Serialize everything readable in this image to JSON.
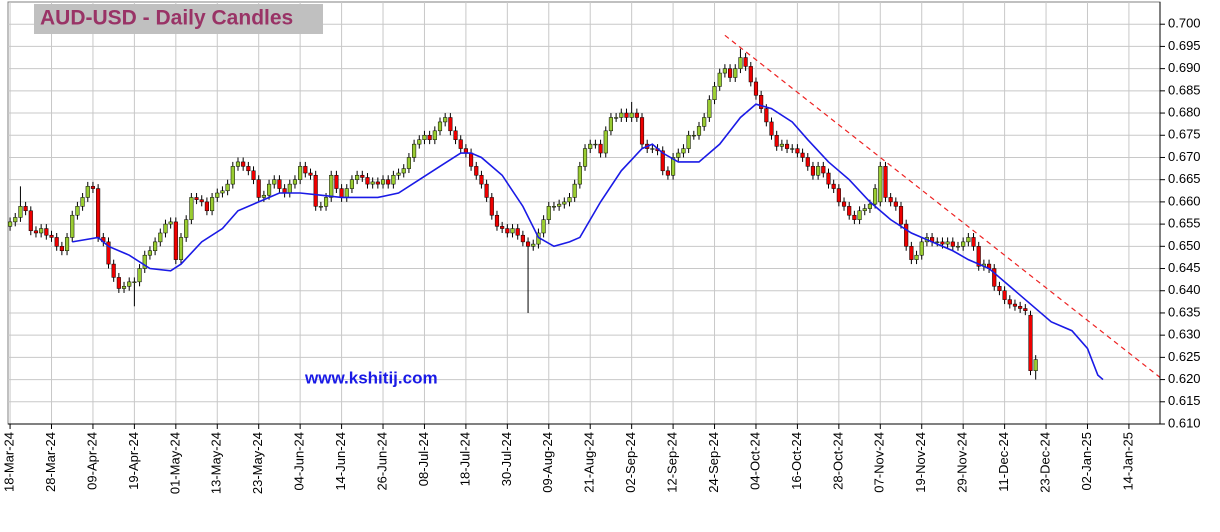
{
  "chart_data": {
    "type": "candlestick",
    "title": "AUD-USD - Daily Candles",
    "annotation": "www.kshitij.com",
    "up_color": "#9acd32",
    "down_color": "#ee0000",
    "open": [
      0.6545,
      0.6555,
      0.6565,
      0.659,
      0.658,
      0.6535,
      0.653,
      0.654,
      0.6525,
      0.652,
      0.65,
      0.649,
      0.652,
      0.657,
      0.659,
      0.661,
      0.6635,
      0.663,
      0.652,
      0.651,
      0.646,
      0.643,
      0.6405,
      0.641,
      0.642,
      0.642,
      0.645,
      0.648,
      0.649,
      0.651,
      0.653,
      0.655,
      0.6555,
      0.647,
      0.652,
      0.656,
      0.661,
      0.6605,
      0.66,
      0.658,
      0.661,
      0.662,
      0.6625,
      0.664,
      0.668,
      0.669,
      0.668,
      0.667,
      0.665,
      0.661,
      0.6615,
      0.664,
      0.665,
      0.663,
      0.662,
      0.664,
      0.665,
      0.668,
      0.6665,
      0.666,
      0.659,
      0.659,
      0.661,
      0.666,
      0.663,
      0.661,
      0.663,
      0.665,
      0.666,
      0.6655,
      0.664,
      0.6645,
      0.664,
      0.665,
      0.664,
      0.666,
      0.6665,
      0.6675,
      0.67,
      0.673,
      0.674,
      0.675,
      0.674,
      0.676,
      0.678,
      0.679,
      0.676,
      0.674,
      0.672,
      0.671,
      0.668,
      0.666,
      0.664,
      0.661,
      0.657,
      0.6545,
      0.654,
      0.653,
      0.654,
      0.6525,
      0.651,
      0.65,
      0.6505,
      0.653,
      0.656,
      0.659,
      0.659,
      0.6595,
      0.66,
      0.661,
      0.664,
      0.668,
      0.672,
      0.673,
      0.673,
      0.671,
      0.676,
      0.679,
      0.679,
      0.68,
      0.679,
      0.68,
      0.679,
      0.673,
      0.672,
      0.672,
      0.6715,
      0.667,
      0.666,
      0.67,
      0.671,
      0.672,
      0.675,
      0.675,
      0.677,
      0.679,
      0.683,
      0.686,
      0.689,
      0.69,
      0.688,
      0.69,
      0.6925,
      0.6905,
      0.687,
      0.684,
      0.681,
      0.678,
      0.675,
      0.6725,
      0.673,
      0.672,
      0.672,
      0.671,
      0.67,
      0.668,
      0.666,
      0.668,
      0.6665,
      0.664,
      0.663,
      0.66,
      0.659,
      0.657,
      0.656,
      0.658,
      0.6585,
      0.6595,
      0.66,
      0.668,
      0.661,
      0.66,
      0.659,
      0.655,
      0.65,
      0.647,
      0.648,
      0.651,
      0.652,
      0.651,
      0.651,
      0.6505,
      0.651,
      0.65,
      0.65,
      0.651,
      0.652,
      0.65,
      0.6455,
      0.646,
      0.645,
      0.641,
      0.64,
      0.638,
      0.637,
      0.6365,
      0.636,
      0.6345,
      0.622
    ],
    "high": [
      0.6565,
      0.6575,
      0.6635,
      0.66,
      0.659,
      0.6545,
      0.655,
      0.655,
      0.6535,
      0.653,
      0.651,
      0.653,
      0.658,
      0.66,
      0.662,
      0.6645,
      0.6645,
      0.664,
      0.653,
      0.652,
      0.647,
      0.644,
      0.642,
      0.643,
      0.643,
      0.646,
      0.649,
      0.65,
      0.652,
      0.654,
      0.656,
      0.6565,
      0.6565,
      0.653,
      0.657,
      0.662,
      0.662,
      0.6615,
      0.661,
      0.662,
      0.663,
      0.6635,
      0.665,
      0.669,
      0.67,
      0.67,
      0.669,
      0.668,
      0.666,
      0.6625,
      0.665,
      0.666,
      0.666,
      0.664,
      0.665,
      0.666,
      0.669,
      0.669,
      0.6675,
      0.667,
      0.66,
      0.662,
      0.667,
      0.667,
      0.664,
      0.664,
      0.666,
      0.667,
      0.667,
      0.6665,
      0.6655,
      0.6655,
      0.666,
      0.666,
      0.667,
      0.6675,
      0.6685,
      0.671,
      0.674,
      0.675,
      0.676,
      0.676,
      0.677,
      0.679,
      0.68,
      0.68,
      0.677,
      0.675,
      0.673,
      0.672,
      0.669,
      0.667,
      0.665,
      0.662,
      0.658,
      0.6555,
      0.655,
      0.655,
      0.655,
      0.6535,
      0.652,
      0.6515,
      0.654,
      0.657,
      0.66,
      0.66,
      0.6605,
      0.661,
      0.662,
      0.665,
      0.669,
      0.673,
      0.674,
      0.674,
      0.674,
      0.677,
      0.68,
      0.68,
      0.681,
      0.681,
      0.6825,
      0.681,
      0.68,
      0.674,
      0.673,
      0.673,
      0.6725,
      0.668,
      0.671,
      0.672,
      0.673,
      0.676,
      0.676,
      0.678,
      0.68,
      0.684,
      0.687,
      0.69,
      0.691,
      0.691,
      0.691,
      0.6945,
      0.6935,
      0.6915,
      0.688,
      0.685,
      0.682,
      0.679,
      0.676,
      0.674,
      0.674,
      0.673,
      0.673,
      0.672,
      0.671,
      0.669,
      0.669,
      0.669,
      0.6675,
      0.665,
      0.664,
      0.661,
      0.66,
      0.658,
      0.659,
      0.6595,
      0.6605,
      0.664,
      0.669,
      0.669,
      0.662,
      0.661,
      0.66,
      0.656,
      0.651,
      0.649,
      0.652,
      0.653,
      0.653,
      0.652,
      0.652,
      0.652,
      0.652,
      0.651,
      0.652,
      0.653,
      0.653,
      0.651,
      0.647,
      0.647,
      0.646,
      0.642,
      0.641,
      0.639,
      0.638,
      0.6375,
      0.637,
      0.6355,
      0.6255
    ],
    "low": [
      0.6535,
      0.6545,
      0.6555,
      0.657,
      0.6525,
      0.652,
      0.652,
      0.6515,
      0.651,
      0.649,
      0.648,
      0.648,
      0.651,
      0.656,
      0.658,
      0.66,
      0.662,
      0.651,
      0.65,
      0.645,
      0.642,
      0.6395,
      0.6395,
      0.64,
      0.6365,
      0.641,
      0.644,
      0.647,
      0.648,
      0.65,
      0.652,
      0.654,
      0.646,
      0.646,
      0.651,
      0.655,
      0.6595,
      0.659,
      0.657,
      0.657,
      0.66,
      0.661,
      0.6615,
      0.663,
      0.667,
      0.667,
      0.666,
      0.664,
      0.66,
      0.66,
      0.6605,
      0.663,
      0.662,
      0.661,
      0.661,
      0.663,
      0.664,
      0.6655,
      0.665,
      0.658,
      0.658,
      0.658,
      0.66,
      0.662,
      0.66,
      0.66,
      0.662,
      0.664,
      0.6645,
      0.663,
      0.663,
      0.663,
      0.663,
      0.663,
      0.663,
      0.665,
      0.6655,
      0.6665,
      0.669,
      0.672,
      0.673,
      0.673,
      0.673,
      0.675,
      0.677,
      0.675,
      0.673,
      0.671,
      0.67,
      0.667,
      0.665,
      0.663,
      0.66,
      0.656,
      0.6535,
      0.653,
      0.652,
      0.652,
      0.6515,
      0.65,
      0.635,
      0.649,
      0.6495,
      0.652,
      0.655,
      0.658,
      0.658,
      0.6585,
      0.659,
      0.66,
      0.663,
      0.667,
      0.671,
      0.672,
      0.67,
      0.67,
      0.675,
      0.678,
      0.678,
      0.678,
      0.678,
      0.678,
      0.672,
      0.671,
      0.671,
      0.6705,
      0.666,
      0.665,
      0.665,
      0.669,
      0.67,
      0.671,
      0.674,
      0.674,
      0.676,
      0.678,
      0.682,
      0.685,
      0.688,
      0.687,
      0.687,
      0.689,
      0.6895,
      0.686,
      0.683,
      0.68,
      0.677,
      0.674,
      0.6715,
      0.6715,
      0.671,
      0.671,
      0.67,
      0.669,
      0.667,
      0.665,
      0.665,
      0.6655,
      0.663,
      0.662,
      0.659,
      0.658,
      0.656,
      0.655,
      0.655,
      0.657,
      0.6575,
      0.6585,
      0.659,
      0.66,
      0.659,
      0.658,
      0.654,
      0.649,
      0.646,
      0.646,
      0.647,
      0.65,
      0.65,
      0.65,
      0.6495,
      0.6495,
      0.649,
      0.649,
      0.649,
      0.65,
      0.649,
      0.6445,
      0.6445,
      0.644,
      0.64,
      0.639,
      0.637,
      0.636,
      0.6355,
      0.635,
      0.6345,
      0.621,
      0.62
    ],
    "close": [
      0.6555,
      0.6565,
      0.659,
      0.658,
      0.6535,
      0.653,
      0.654,
      0.6525,
      0.652,
      0.65,
      0.649,
      0.652,
      0.657,
      0.659,
      0.661,
      0.6635,
      0.663,
      0.652,
      0.651,
      0.646,
      0.643,
      0.6405,
      0.641,
      0.642,
      0.642,
      0.645,
      0.648,
      0.649,
      0.651,
      0.653,
      0.655,
      0.6555,
      0.647,
      0.652,
      0.656,
      0.661,
      0.6605,
      0.66,
      0.658,
      0.661,
      0.662,
      0.6625,
      0.664,
      0.668,
      0.669,
      0.668,
      0.667,
      0.665,
      0.661,
      0.6615,
      0.664,
      0.665,
      0.663,
      0.662,
      0.664,
      0.665,
      0.668,
      0.6665,
      0.666,
      0.659,
      0.659,
      0.661,
      0.666,
      0.663,
      0.661,
      0.663,
      0.665,
      0.666,
      0.6655,
      0.664,
      0.6645,
      0.664,
      0.665,
      0.664,
      0.666,
      0.6665,
      0.6675,
      0.67,
      0.673,
      0.674,
      0.675,
      0.674,
      0.676,
      0.678,
      0.679,
      0.676,
      0.674,
      0.672,
      0.671,
      0.668,
      0.666,
      0.664,
      0.661,
      0.657,
      0.6545,
      0.654,
      0.653,
      0.654,
      0.6525,
      0.651,
      0.65,
      0.6505,
      0.653,
      0.656,
      0.659,
      0.659,
      0.6595,
      0.66,
      0.661,
      0.664,
      0.668,
      0.672,
      0.673,
      0.673,
      0.671,
      0.676,
      0.679,
      0.679,
      0.68,
      0.679,
      0.68,
      0.679,
      0.673,
      0.672,
      0.672,
      0.6715,
      0.667,
      0.666,
      0.67,
      0.671,
      0.672,
      0.675,
      0.675,
      0.677,
      0.679,
      0.683,
      0.686,
      0.689,
      0.69,
      0.688,
      0.69,
      0.6925,
      0.6905,
      0.687,
      0.684,
      0.681,
      0.678,
      0.675,
      0.6725,
      0.673,
      0.672,
      0.672,
      0.671,
      0.67,
      0.668,
      0.666,
      0.668,
      0.6665,
      0.664,
      0.663,
      0.66,
      0.659,
      0.657,
      0.656,
      0.658,
      0.6585,
      0.6595,
      0.663,
      0.668,
      0.661,
      0.66,
      0.659,
      0.655,
      0.65,
      0.647,
      0.648,
      0.651,
      0.652,
      0.651,
      0.651,
      0.6505,
      0.651,
      0.65,
      0.65,
      0.651,
      0.652,
      0.65,
      0.6455,
      0.646,
      0.645,
      0.641,
      0.64,
      0.638,
      0.637,
      0.6365,
      0.636,
      0.6355,
      0.622,
      0.6245
    ],
    "moving_average": {
      "color": "#1a1ae6",
      "x": [
        12,
        17,
        19,
        23,
        27,
        31,
        33,
        37,
        41,
        44,
        48,
        52,
        56,
        60,
        64,
        68,
        71,
        75,
        79,
        83,
        87,
        89,
        91,
        95,
        99,
        102,
        105,
        108,
        110,
        114,
        118,
        122,
        124,
        126,
        129,
        133,
        137,
        141,
        144,
        147,
        151,
        154,
        158,
        162,
        166,
        170,
        174,
        178,
        182,
        185,
        189,
        193,
        197,
        201,
        205,
        208,
        210,
        211
      ],
      "values": [
        0.651,
        0.652,
        0.65,
        0.648,
        0.645,
        0.6445,
        0.646,
        0.651,
        0.654,
        0.658,
        0.66,
        0.662,
        0.662,
        0.6615,
        0.661,
        0.661,
        0.661,
        0.662,
        0.665,
        0.668,
        0.671,
        0.671,
        0.67,
        0.666,
        0.659,
        0.652,
        0.65,
        0.651,
        0.652,
        0.66,
        0.667,
        0.672,
        0.673,
        0.671,
        0.669,
        0.669,
        0.673,
        0.679,
        0.682,
        0.681,
        0.678,
        0.674,
        0.669,
        0.665,
        0.66,
        0.656,
        0.653,
        0.651,
        0.649,
        0.647,
        0.645,
        0.641,
        0.637,
        0.633,
        0.631,
        0.627,
        0.621,
        0.62
      ]
    },
    "trendline": {
      "color": "#ee2222",
      "x": [
        138,
        222
      ],
      "values": [
        0.6975,
        0.6205
      ]
    },
    "xlim": [
      -0.4,
      222
    ],
    "xticks": [
      {
        "value": 0,
        "label": "18-Mar-24"
      },
      {
        "value": 8,
        "label": "28-Mar-24"
      },
      {
        "value": 16,
        "label": "09-Apr-24"
      },
      {
        "value": 24,
        "label": "19-Apr-24"
      },
      {
        "value": 32,
        "label": "01-May-24"
      },
      {
        "value": 40,
        "label": "13-May-24"
      },
      {
        "value": 48,
        "label": "23-May-24"
      },
      {
        "value": 56,
        "label": "04-Jun-24"
      },
      {
        "value": 64,
        "label": "14-Jun-24"
      },
      {
        "value": 72,
        "label": "26-Jun-24"
      },
      {
        "value": 80,
        "label": "08-Jul-24"
      },
      {
        "value": 88,
        "label": "18-Jul-24"
      },
      {
        "value": 96,
        "label": "30-Jul-24"
      },
      {
        "value": 104,
        "label": "09-Aug-24"
      },
      {
        "value": 112,
        "label": "21-Aug-24"
      },
      {
        "value": 120,
        "label": "02-Sep-24"
      },
      {
        "value": 128,
        "label": "12-Sep-24"
      },
      {
        "value": 136,
        "label": "24-Sep-24"
      },
      {
        "value": 144,
        "label": "04-Oct-24"
      },
      {
        "value": 152,
        "label": "16-Oct-24"
      },
      {
        "value": 160,
        "label": "28-Oct-24"
      },
      {
        "value": 168,
        "label": "07-Nov-24"
      },
      {
        "value": 176,
        "label": "19-Nov-24"
      },
      {
        "value": 184,
        "label": "29-Nov-24"
      },
      {
        "value": 192,
        "label": "11-Dec-24"
      },
      {
        "value": 200,
        "label": "23-Dec-24"
      },
      {
        "value": 208,
        "label": "02-Jan-25"
      },
      {
        "value": 216,
        "label": "14-Jan-25"
      }
    ],
    "ylim": [
      0.61,
      0.705
    ],
    "yticks": [
      {
        "value": 0.61,
        "label": "0.610"
      },
      {
        "value": 0.615,
        "label": "0.615"
      },
      {
        "value": 0.62,
        "label": "0.620"
      },
      {
        "value": 0.625,
        "label": "0.625"
      },
      {
        "value": 0.63,
        "label": "0.630"
      },
      {
        "value": 0.635,
        "label": "0.635"
      },
      {
        "value": 0.64,
        "label": "0.640"
      },
      {
        "value": 0.645,
        "label": "0.645"
      },
      {
        "value": 0.65,
        "label": "0.650"
      },
      {
        "value": 0.655,
        "label": "0.655"
      },
      {
        "value": 0.66,
        "label": "0.660"
      },
      {
        "value": 0.665,
        "label": "0.665"
      },
      {
        "value": 0.67,
        "label": "0.670"
      },
      {
        "value": 0.675,
        "label": "0.675"
      },
      {
        "value": 0.68,
        "label": "0.680"
      },
      {
        "value": 0.685,
        "label": "0.685"
      },
      {
        "value": 0.69,
        "label": "0.690"
      },
      {
        "value": 0.695,
        "label": "0.695"
      },
      {
        "value": 0.7,
        "label": "0.700"
      }
    ],
    "grid": true
  }
}
